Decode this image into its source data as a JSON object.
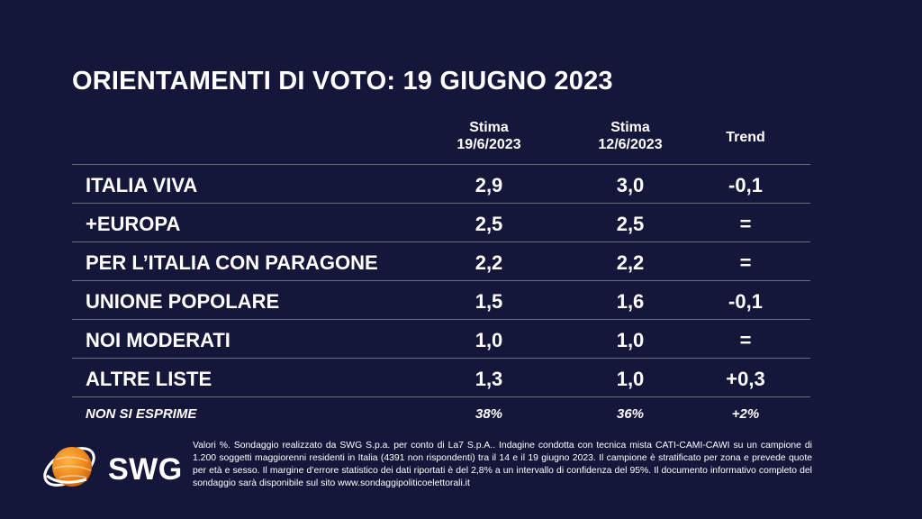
{
  "title": "ORIENTAMENTI DI VOTO: 19 GIUGNO 2023",
  "headers": {
    "col1_line1": "Stima",
    "col1_line2": "19/6/2023",
    "col2_line1": "Stima",
    "col2_line2": "12/6/2023",
    "col3": "Trend"
  },
  "rows": [
    {
      "name": "ITALIA VIVA",
      "current": "2,9",
      "previous": "3,0",
      "trend": "-0,1"
    },
    {
      "name": "+EUROPA",
      "current": "2,5",
      "previous": "2,5",
      "trend": "="
    },
    {
      "name": "PER L’ITALIA CON PARAGONE",
      "current": "2,2",
      "previous": "2,2",
      "trend": "="
    },
    {
      "name": "UNIONE POPOLARE",
      "current": "1,5",
      "previous": "1,6",
      "trend": "-0,1"
    },
    {
      "name": "NOI MODERATI",
      "current": "1,0",
      "previous": "1,0",
      "trend": "="
    },
    {
      "name": "ALTRE LISTE",
      "current": "1,3",
      "previous": "1,0",
      "trend": "+0,3"
    }
  ],
  "non_si_esprime": {
    "name": "NON SI ESPRIME",
    "current": "38%",
    "previous": "36%",
    "trend": "+2%"
  },
  "logo": {
    "text": "SWG",
    "icon": "swg-globe-logo"
  },
  "note": "Valori %. Sondaggio realizzato da SWG S.p.a. per conto di La7 S.p.A.. Indagine condotta con tecnica mista CATI-CAMI-CAWI su un campione di 1.200 soggetti maggiorenni residenti in Italia (4391 non rispondenti) tra il 14 e il 19 giugno 2023. Il campione è stratificato per zona e prevede quote per età e sesso. Il margine d’errore statistico dei dati riportati è del 2,8% a un intervallo di confidenza del 95%. Il documento informativo completo del sondaggio sarà disponibile sul sito www.sondaggipoliticoelettorali.it",
  "colors": {
    "background": "#14163a",
    "text": "#ffffff",
    "divider": "#6a6c82",
    "logo_orange": "#f08a1c"
  }
}
